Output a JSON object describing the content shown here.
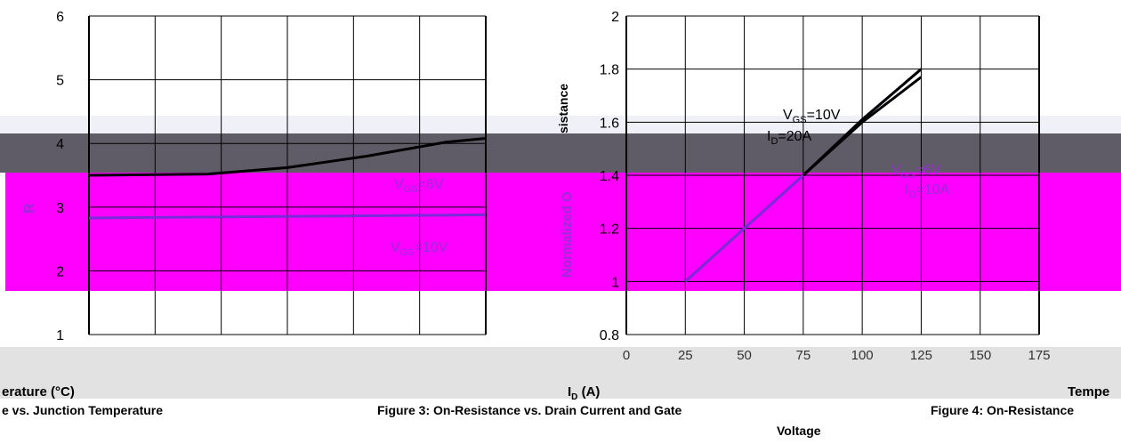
{
  "chart_data": [
    {
      "type": "line",
      "yticks": [
        "1",
        "2",
        "3",
        "4",
        "5",
        "6"
      ],
      "ylim": [
        1,
        6
      ],
      "xlabel": "erature (°C)",
      "ylabel": "R",
      "series": [
        {
          "name": "VGS=6V",
          "points": [
            [
              0,
              3.5
            ],
            [
              0.3,
              3.52
            ],
            [
              0.5,
              3.62
            ],
            [
              0.7,
              3.8
            ],
            [
              0.9,
              4.02
            ],
            [
              1.0,
              4.08
            ]
          ]
        },
        {
          "name": "VGS=10V",
          "points": [
            [
              0,
              2.83
            ],
            [
              1.0,
              2.88
            ]
          ]
        }
      ],
      "annotations": [
        {
          "text_main": "V",
          "text_sub": "GS",
          "text_rest": "=6V"
        },
        {
          "text_main": "V",
          "text_sub": "GS",
          "text_rest": "=10V"
        }
      ]
    },
    {
      "type": "line",
      "yticks": [
        "0.8",
        "1",
        "1.2",
        "1.4",
        "1.6",
        "1.8",
        "2"
      ],
      "ylim": [
        0.8,
        2
      ],
      "xticks": [
        "0",
        "25",
        "50",
        "75",
        "100",
        "125",
        "150",
        "175"
      ],
      "xlabel_main": "I",
      "xlabel_sub": "D",
      "xlabel_rest": " (A)",
      "ylabel": "Normalized O",
      "ylabel_partial": "sistance",
      "series": [
        {
          "name": "VGS=10V ID=20A",
          "points": [
            [
              25,
              1.0
            ],
            [
              50,
              1.2
            ],
            [
              75,
              1.4
            ],
            [
              100,
              1.61
            ],
            [
              125,
              1.8
            ]
          ]
        },
        {
          "name": "VGS=6V ID=10A",
          "points": [
            [
              75,
              1.4
            ],
            [
              100,
              1.6
            ],
            [
              125,
              1.77
            ]
          ]
        }
      ],
      "annotations": [
        {
          "text_main": "V",
          "text_sub": "GS",
          "text_rest": "=10V"
        },
        {
          "text_main": "I",
          "text_sub": "D",
          "text_rest": "=20A"
        },
        {
          "text_main": "V",
          "text_sub": "GS",
          "text_rest": "=6V"
        },
        {
          "text_main": "I",
          "text_sub": "D",
          "text_rest": "=10A"
        }
      ]
    }
  ],
  "captions": {
    "left": "e vs. Junction Temperature",
    "middle": "Figure 3: On-Resistance vs. Drain Current and Gate",
    "middle_line2": "Voltage",
    "right": "Figure 4: On-Resistance",
    "right_axis": "Tempe"
  },
  "colors": {
    "magenta_band": "#ff00ff",
    "gray_band": "#5f5c68",
    "light_band": "#f0f0f8",
    "gray_strip": "#e2e2e2",
    "label_purple": "#9a2bd6",
    "grid": "#000000"
  }
}
